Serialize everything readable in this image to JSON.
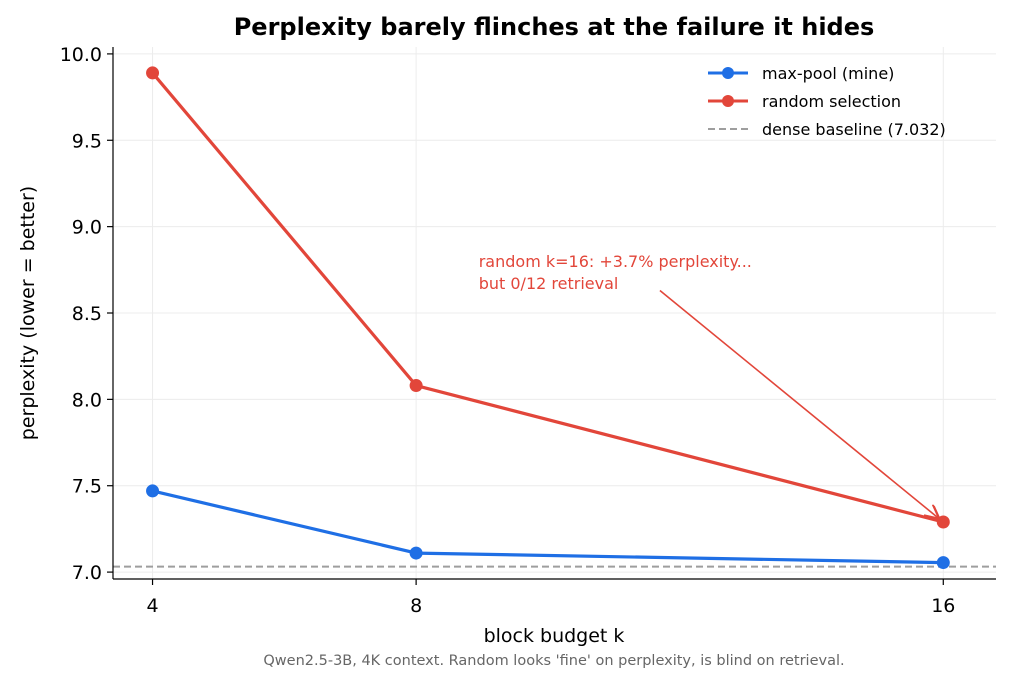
{
  "chart_data": {
    "type": "line",
    "title": "Perplexity barely flinches at the failure it hides",
    "xlabel": "block budget k",
    "ylabel": "perplexity  (lower = better)",
    "caption": "Qwen2.5-3B, 4K context. Random looks 'fine' on perplexity, is blind on retrieval.",
    "x": [
      4,
      8,
      16
    ],
    "x_ticks": [
      "4",
      "8",
      "16"
    ],
    "y_ticks": [
      "7.0",
      "7.5",
      "8.0",
      "8.5",
      "9.0",
      "9.5",
      "10.0"
    ],
    "xlim": [
      3.4,
      16.8
    ],
    "ylim": [
      6.96,
      10.04
    ],
    "grid": true,
    "legend_position": "top-right",
    "series": [
      {
        "name": "max-pool (mine)",
        "color": "#1f6fe5",
        "values": [
          7.47,
          7.11,
          7.055
        ]
      },
      {
        "name": "random selection",
        "color": "#e2463a",
        "values": [
          9.89,
          8.08,
          7.29
        ]
      }
    ],
    "baseline": {
      "name": "dense baseline (7.032)",
      "value": 7.032,
      "color": "#9e9e9e"
    },
    "annotation": {
      "line1": "random k=16: +3.7% perplexity...",
      "line2": "but 0/12 retrieval",
      "color": "#e2463a",
      "text_at": [
        8.95,
        8.8
      ],
      "arrow_from": [
        11.7,
        8.63
      ],
      "arrow_to": [
        16,
        7.29
      ]
    }
  }
}
